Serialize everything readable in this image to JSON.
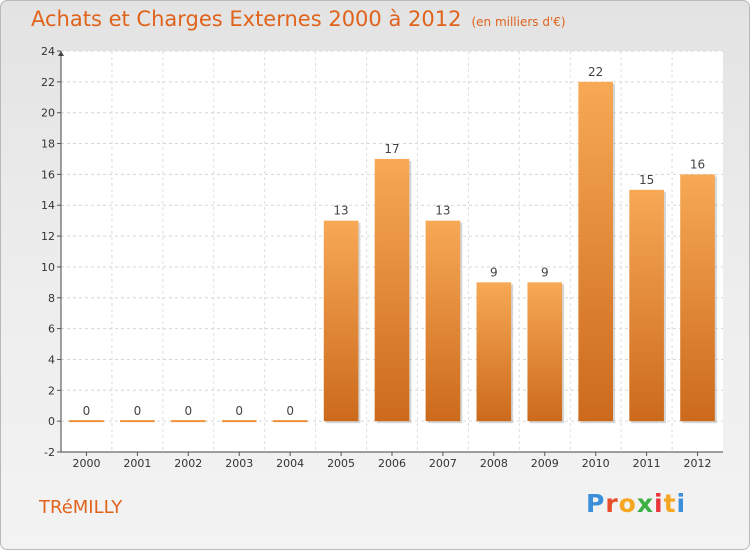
{
  "header": {
    "title": "Achats et Charges Externes 2000 à 2012",
    "unit": "(en milliers d'€)"
  },
  "footer": {
    "commune": "TRéMILLY",
    "brand": "Proxiti",
    "brand_letters": [
      "P",
      "r",
      "o",
      "x",
      "i",
      "t",
      "i"
    ],
    "brand_colors": [
      "#3a8fd8",
      "#e84e2a",
      "#f5a623",
      "#3cb043",
      "#e8363a",
      "#f5a623",
      "#3a8fd8"
    ]
  },
  "chart_data": {
    "type": "bar",
    "categories": [
      "2000",
      "2001",
      "2002",
      "2003",
      "2004",
      "2005",
      "2006",
      "2007",
      "2008",
      "2009",
      "2010",
      "2011",
      "2012"
    ],
    "values": [
      0,
      0,
      0,
      0,
      0,
      13,
      17,
      13,
      9,
      9,
      22,
      15,
      16
    ],
    "data_labels": [
      "0",
      "0",
      "0",
      "0",
      "0",
      "13",
      "17",
      "13",
      "9",
      "9",
      "22",
      "15",
      "16"
    ],
    "y_ticks": [
      "-2",
      "0",
      "2",
      "4",
      "6",
      "8",
      "10",
      "12",
      "14",
      "16",
      "18",
      "20",
      "22",
      "24"
    ],
    "ylim": [
      -2,
      24
    ],
    "grid": true,
    "bar_color": "#f0913a",
    "bar_color_light": "#f7a955",
    "bar_color_dark": "#cc6a1c"
  }
}
